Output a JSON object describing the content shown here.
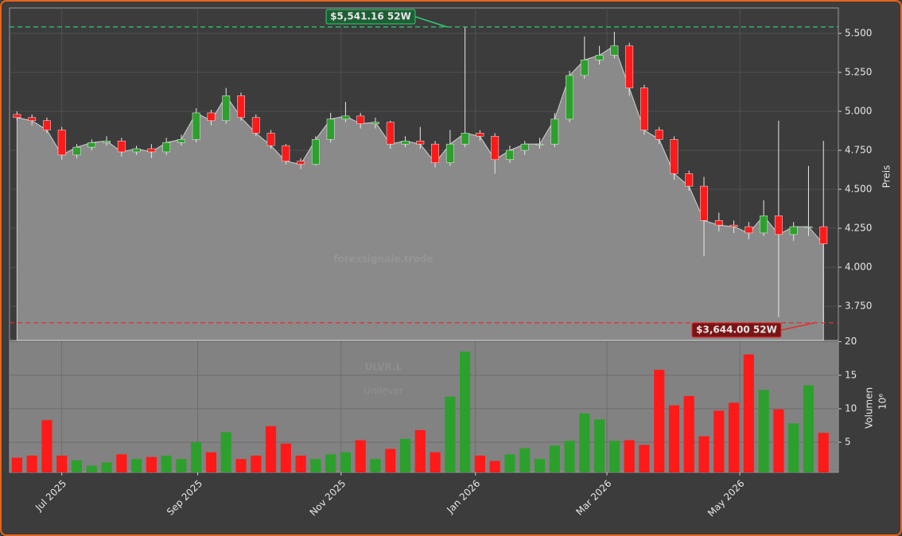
{
  "chart_data": [
    {
      "type": "candlestick",
      "ylabel": "Preis",
      "watermark": [
        "forexsignale.trade",
        "ULVR.L",
        "Unilever"
      ],
      "categories": [
        null,
        null,
        null,
        null,
        null,
        null,
        null,
        null,
        null,
        null,
        null,
        null,
        null,
        null,
        null,
        null,
        null,
        null,
        null,
        null,
        null,
        null,
        null,
        null,
        null,
        null,
        null,
        null,
        null,
        null,
        null,
        null,
        null,
        null,
        null,
        null,
        null,
        null,
        null,
        null,
        null,
        null,
        null,
        null,
        null,
        null,
        null,
        null,
        null,
        null,
        null,
        null,
        null,
        null,
        null
      ],
      "open": [
        4980,
        4960,
        4940,
        4880,
        4720,
        4770,
        4800,
        4810,
        4740,
        4760,
        4740,
        4800,
        4820,
        4990,
        4940,
        5100,
        4960,
        4860,
        4780,
        4680,
        4660,
        4820,
        4950,
        4970,
        4920,
        4930,
        4790,
        4810,
        4790,
        4670,
        4790,
        4860,
        4840,
        4690,
        4750,
        4790,
        4790,
        4950,
        5230,
        5330,
        5360,
        5420,
        5150,
        4880,
        4820,
        4600,
        4520,
        4300,
        4270,
        4260,
        4220,
        4330,
        4210,
        4260,
        4260
      ],
      "high": [
        5000,
        4980,
        4960,
        4900,
        4790,
        4820,
        4840,
        4830,
        4780,
        4790,
        4830,
        4850,
        5020,
        5010,
        5150,
        5120,
        4980,
        4880,
        4790,
        4700,
        4840,
        4990,
        5060,
        4990,
        4960,
        4940,
        4840,
        4900,
        4810,
        4880,
        5541.16,
        4880,
        4860,
        4780,
        4810,
        4830,
        4990,
        5260,
        5480,
        5420,
        5510,
        5440,
        5170,
        4900,
        4840,
        4620,
        4580,
        4350,
        4300,
        4290,
        4430,
        4940,
        4290,
        4650,
        4810
      ],
      "low": [
        4940,
        4910,
        4860,
        4690,
        4700,
        4750,
        4780,
        4710,
        4720,
        4700,
        4720,
        4780,
        4800,
        4910,
        4920,
        4940,
        4840,
        4760,
        4660,
        4630,
        4650,
        4800,
        4930,
        4890,
        4890,
        4760,
        4770,
        4760,
        4640,
        4650,
        4770,
        4810,
        4600,
        4670,
        4720,
        4760,
        4770,
        4930,
        5210,
        5300,
        5340,
        5100,
        4850,
        4790,
        4560,
        4490,
        4070,
        4230,
        4220,
        4180,
        4200,
        3680,
        4170,
        4200,
        3644
      ],
      "close": [
        4960,
        4940,
        4880,
        4720,
        4770,
        4800,
        4810,
        4740,
        4760,
        4740,
        4800,
        4820,
        4990,
        4940,
        5100,
        4960,
        4860,
        4780,
        4680,
        4660,
        4820,
        4950,
        4970,
        4920,
        4930,
        4790,
        4810,
        4790,
        4670,
        4790,
        4860,
        4840,
        4690,
        4750,
        4790,
        4790,
        4950,
        5230,
        5330,
        5360,
        5420,
        5150,
        4880,
        4820,
        4600,
        4520,
        4300,
        4270,
        4260,
        4220,
        4330,
        4210,
        4260,
        4260,
        4150
      ],
      "up_color": "#2ca02c",
      "down_color": "#ff1a1a",
      "area_color": "#8a8a8a",
      "ylim": [
        3531,
        5663
      ],
      "yticks": [
        {
          "value": 3750,
          "label": "3.750"
        },
        {
          "value": 4000,
          "label": "4.000"
        },
        {
          "value": 4250,
          "label": "4.250"
        },
        {
          "value": 4500,
          "label": "4.500"
        },
        {
          "value": 4750,
          "label": "4.750"
        },
        {
          "value": 5000,
          "label": "5.000"
        },
        {
          "value": 5250,
          "label": "5.250"
        },
        {
          "value": 5500,
          "label": "5.500"
        }
      ],
      "grid": true,
      "annotations": [
        {
          "text": "$5,541.16 52W",
          "value": 5541.16,
          "color": "#2ecc71"
        },
        {
          "text": "$3,644.00 52W",
          "value": 3644,
          "color": "#e03030"
        }
      ]
    },
    {
      "type": "bar",
      "ylabel": "Volumen",
      "unit": "10⁶",
      "values": [
        2.7,
        3,
        8.3,
        3,
        2.3,
        1.5,
        2,
        3.2,
        2.5,
        2.8,
        3,
        2.5,
        5,
        3.5,
        6.5,
        2.5,
        3,
        7.4,
        4.8,
        3,
        2.5,
        3.2,
        3.5,
        5.3,
        2.5,
        4,
        5.5,
        6.8,
        3.5,
        11.8,
        18.5,
        3,
        2.2,
        3.2,
        4.1,
        2.5,
        4.5,
        5.2,
        9.3,
        8.4,
        5.2,
        5.3,
        4.6,
        15.8,
        10.5,
        11.9,
        5.9,
        9.7,
        10.9,
        18.1,
        12.8,
        9.9,
        7.8,
        13.5,
        6.4
      ],
      "ylim": [
        0.5,
        20.2
      ],
      "yticks": [
        5,
        10,
        15,
        20
      ],
      "grid": true,
      "xticks": [
        {
          "value": 3.0,
          "label": "Jul 2025"
        },
        {
          "value": 12.1,
          "label": "Sep 2025"
        },
        {
          "value": 21.7,
          "label": "Nov 2025"
        },
        {
          "value": 30.7,
          "label": "Jan 2026"
        },
        {
          "value": 39.5,
          "label": "Mar 2026"
        },
        {
          "value": 48.4,
          "label": "May 2026"
        }
      ]
    }
  ]
}
